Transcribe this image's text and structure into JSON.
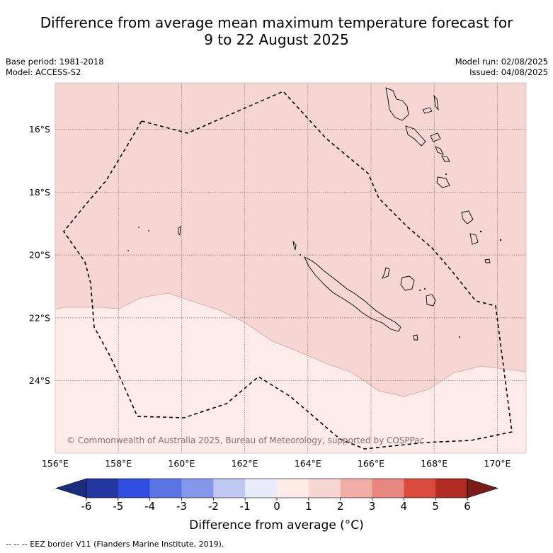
{
  "title_line1": "Difference from average mean maximum temperature forecast for",
  "title_line2": "9 to 22 August 2025",
  "meta_left": {
    "base_period": "Base period: 1981-2018",
    "model": "Model: ACCESS-S2"
  },
  "meta_right": {
    "model_run": "Model run: 02/08/2025",
    "issued": "Issued: 04/08/2025"
  },
  "copyright": "© Commonwealth of Australia 2025, Bureau of Meteorology, supported by COSPPac",
  "lat_labels": [
    "16°S",
    "18°S",
    "20°S",
    "22°S",
    "24°S"
  ],
  "lon_labels": [
    "156°E",
    "158°E",
    "160°E",
    "162°E",
    "164°E",
    "166°E",
    "168°E",
    "170°E"
  ],
  "colorbar": {
    "ticks": [
      "-6",
      "-5",
      "-4",
      "-3",
      "-2",
      "-1",
      "0",
      "1",
      "2",
      "3",
      "4",
      "5",
      "6"
    ],
    "colors": [
      "#22379f",
      "#2f4ee0",
      "#5a74e6",
      "#8597ea",
      "#bfc7f3",
      "#e8ebfa",
      "#fdebe8",
      "#f6d5d2",
      "#efada6",
      "#e8877f",
      "#dc4a3e",
      "#b02a22"
    ],
    "under_color": "#1b2c7e",
    "over_color": "#7a1d18",
    "label": "Difference from average (°C)"
  },
  "colors": {
    "anomaly_0_1": "#fcebe8",
    "anomaly_1_2": "#f5d6d3",
    "grid": "#8a6a6a",
    "eez_line": "#000000"
  },
  "footer": "-- -- -- EEZ border V11 (Flanders Marine Institute, 2019)."
}
